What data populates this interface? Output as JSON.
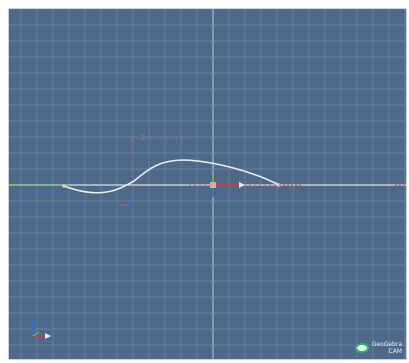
{
  "viewport": {
    "background": "#4d6888",
    "grid_color": "#6e89a7",
    "grid_major_color": "#8ea6c0",
    "curve_color": "#e9eef5",
    "ground_line_color": "#e6ecf2",
    "x_axis_color": "#cc3a2e",
    "y_axis_color": "#7fbf3f",
    "z_axis_color": "#2f6fe0"
  },
  "axis_gizmo": {
    "x_icon": "x-axis-arrow-icon",
    "y_icon": "y-axis-arrow-icon",
    "z_icon": "z-axis-arrow-icon"
  },
  "logo": {
    "icon": "app-logo-icon",
    "line1": "GeoGebra",
    "line2": "CAM"
  }
}
